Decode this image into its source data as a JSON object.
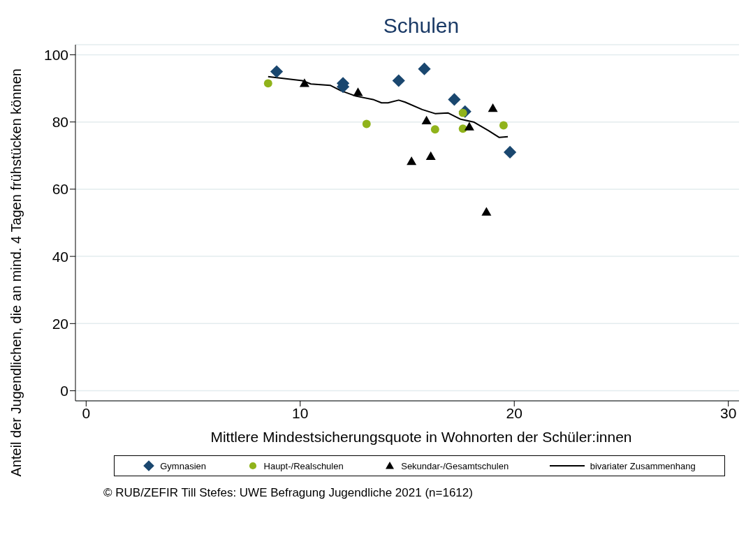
{
  "chart_data": {
    "type": "scatter",
    "title": "Schulen",
    "xlabel": "Mittlere Mindestsicherungsquote in Wohnorten der Schüler:innen",
    "ylabel": "Anteil der Jugendlichen, die an mind. 4 Tagen frühstücken können",
    "xlim": [
      -0.5,
      30.5
    ],
    "ylim": [
      -3,
      103
    ],
    "xticks": [
      0,
      10,
      20,
      30
    ],
    "yticks": [
      0,
      20,
      40,
      60,
      80,
      100
    ],
    "grid": "y",
    "legend": "bottom",
    "annotations": [
      "© RUB/ZEFIR Till Stefes: UWE Befragung Jugendliche 2021 (n=1612)"
    ],
    "series": [
      {
        "name": "Gymnasien",
        "color": "#1a476f",
        "marker": "diamond",
        "x": [
          8.9,
          12.0,
          12.0,
          14.6,
          15.8,
          17.2,
          17.7,
          19.8
        ],
        "values": [
          95.0,
          91.5,
          90.5,
          92.3,
          95.8,
          86.7,
          83.1,
          71.0
        ]
      },
      {
        "name": "Haupt-/Realschulen",
        "color": "#90b31b",
        "marker": "circle",
        "x": [
          8.5,
          13.1,
          16.3,
          17.6,
          17.6,
          19.5
        ],
        "values": [
          91.5,
          79.4,
          77.8,
          82.7,
          78.0,
          79.0
        ]
      },
      {
        "name": "Sekundar-/Gesamtschulen",
        "color": "#000000",
        "marker": "triangle",
        "x": [
          10.2,
          12.7,
          15.9,
          15.2,
          16.1,
          17.9,
          19.0,
          18.7
        ],
        "values": [
          91.5,
          88.8,
          80.4,
          68.3,
          69.8,
          78.6,
          84.1,
          53.2
        ]
      },
      {
        "name": "bivariater Zusammenhang",
        "type": "line",
        "color": "#000000",
        "marker": "none",
        "x": [
          8.5,
          10.1,
          10.5,
          11.4,
          11.9,
          12.6,
          13.4,
          13.8,
          14.1,
          14.6,
          14.9,
          15.7,
          16.3,
          16.9,
          17.5,
          18.1,
          18.8,
          19.3,
          19.7
        ],
        "values": [
          93.5,
          92.3,
          91.3,
          90.9,
          89.3,
          87.7,
          86.7,
          85.7,
          85.7,
          86.5,
          85.9,
          83.7,
          82.5,
          82.7,
          80.8,
          80.0,
          77.4,
          75.4,
          75.6
        ]
      }
    ]
  }
}
